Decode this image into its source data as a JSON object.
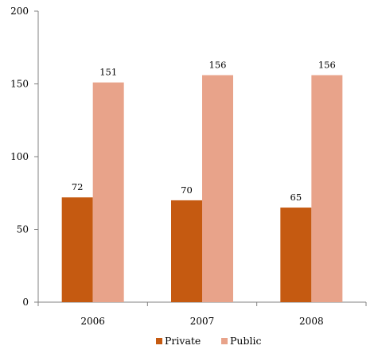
{
  "chart_data": {
    "type": "bar",
    "categories": [
      "2006",
      "2007",
      "2008"
    ],
    "series": [
      {
        "name": "Private",
        "values": [
          72,
          70,
          65
        ],
        "color": "#c55a11"
      },
      {
        "name": "Public",
        "values": [
          151,
          156,
          156
        ],
        "color": "#e8a38a"
      }
    ],
    "ylim": [
      0,
      200
    ],
    "yticks": [
      0,
      50,
      100,
      150,
      200
    ],
    "title": "",
    "xlabel": "",
    "ylabel": "",
    "grid": false,
    "legend_position": "bottom",
    "data_labels": true
  }
}
